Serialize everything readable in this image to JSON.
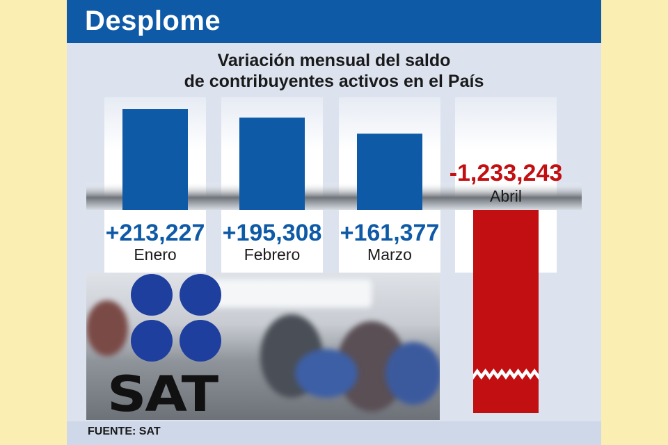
{
  "header": {
    "title": "Desplome"
  },
  "chart_data": {
    "type": "bar",
    "title_lines": [
      "Variación mensual del saldo",
      "de contribuyentes activos en el País"
    ],
    "categories": [
      "Enero",
      "Febrero",
      "Marzo",
      "Abril"
    ],
    "values": [
      213227,
      195308,
      161377,
      -1233243
    ],
    "value_labels": [
      "+213,227",
      "+195,308",
      "+161,377",
      "-1,233,243"
    ],
    "axis_break": true,
    "colors": {
      "positive": "#0e5aa7",
      "negative": "#c20f12",
      "label_positive": "#0e5aa7",
      "label_negative": "#c20f12"
    }
  },
  "photo": {
    "logo_text": "SAT"
  },
  "source": "FUENTE: SAT"
}
